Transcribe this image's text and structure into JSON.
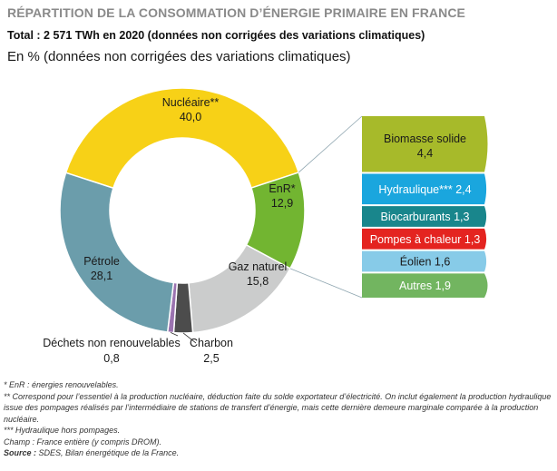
{
  "header": {
    "title": "RÉPARTITION DE LA CONSOMMATION D’ÉNERGIE PRIMAIRE EN FRANCE",
    "subtitle": "Total : 2 571 TWh en 2020 (données non corrigées des variations climatiques)",
    "unit": "En % (données non corrigées des variations climatiques)"
  },
  "chart_data": {
    "type": "pie",
    "donut": true,
    "slices": [
      {
        "label": "Nucléaire**",
        "value": 40.0,
        "display": "40,0",
        "color": "#f7d117"
      },
      {
        "label": "EnR*",
        "value": 12.9,
        "display": "12,9",
        "color": "#72b531"
      },
      {
        "label": "Gaz naturel",
        "value": 15.8,
        "display": "15,8",
        "color": "#cbcccc"
      },
      {
        "label": "Charbon",
        "value": 2.5,
        "display": "2,5",
        "color": "#4c4c4c"
      },
      {
        "label": "Déchets non renouvelables",
        "value": 0.8,
        "display": "0,8",
        "color": "#9b73b0"
      },
      {
        "label": "Pétrole",
        "value": 28.1,
        "display": "28,1",
        "color": "#6b9dab"
      }
    ],
    "breakdown": {
      "of": "EnR*",
      "items": [
        {
          "label": "Biomasse solide",
          "value": 4.4,
          "display": "4,4",
          "color": "#a7ba2a"
        },
        {
          "label": "Hydraulique***",
          "value": 2.4,
          "display": "2,4",
          "color": "#1aa6de"
        },
        {
          "label": "Biocarburants",
          "value": 1.3,
          "display": "1,3",
          "color": "#19868c"
        },
        {
          "label": "Pompes à chaleur",
          "value": 1.3,
          "display": "1,3",
          "color": "#e42420"
        },
        {
          "label": "Éolien",
          "value": 1.6,
          "display": "1,6",
          "color": "#87cbe8"
        },
        {
          "label": "Autres",
          "value": 1.9,
          "display": "1,9",
          "color": "#72b560"
        }
      ]
    }
  },
  "notes": {
    "enr": "* EnR : énergies renouvelables.",
    "nuclear": "** Correspond pour l’essentiel à la production nucléaire, déduction faite du solde exportateur d’électricité. On inclut également la production hydraulique issue des pompages réalisés par l’intermédiaire de stations de transfert d’énergie, mais cette dernière demeure marginale comparée à la production nucléaire.",
    "hydro": "*** Hydraulique hors pompages.",
    "scope": "Champ : France entière (y compris DROM).",
    "source_label": "Source :",
    "source": " SDES, Bilan énergétique de la France."
  }
}
